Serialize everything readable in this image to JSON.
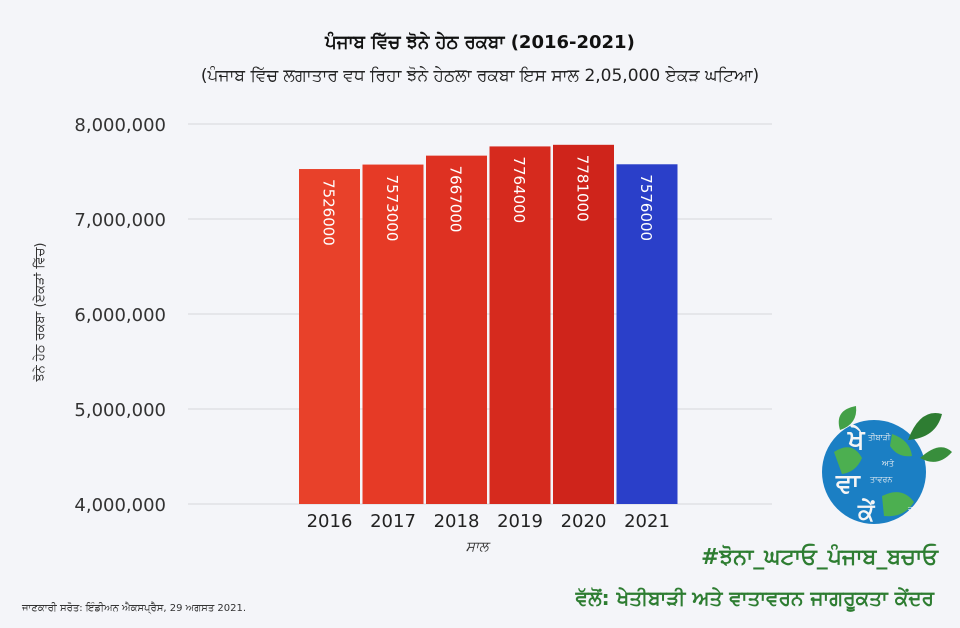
{
  "chart_data": {
    "type": "bar",
    "title": "ਪੰਜਾਬ ਵਿੱਚ ਝੋਨੇ ਹੇਠ ਰਕਬਾ (2016-2021)",
    "subtitle": "(ਪੰਜਾਬ ਵਿੱਚ ਲਗਾਤਾਰ ਵਧ ਰਿਹਾ ਝੋਨੇ ਹੇਠਲਾ ਰਕਬਾ ਇਸ ਸਾਲ 2,05,000 ਏਕੜ ਘਟਿਆ)",
    "xlabel": "ਸਾਲ",
    "ylabel": "ਝੋਨੇ ਹੇਠ ਰਕਬਾ (ਏਕੜਾਂ ਵਿੱਚ)",
    "categories": [
      "2016",
      "2017",
      "2018",
      "2019",
      "2020",
      "2021"
    ],
    "values": [
      7526000,
      7573000,
      7667000,
      7764000,
      7781000,
      7576000
    ],
    "value_labels": [
      "7526000",
      "7573000",
      "7667000",
      "7764000",
      "7781000",
      "7576000"
    ],
    "bar_colors": [
      "#e8412a",
      "#e63a26",
      "#de3122",
      "#d62a1e",
      "#cf241b",
      "#2a3fc9"
    ],
    "ylim": [
      4000000,
      8000000
    ],
    "yticks": [
      4000000,
      5000000,
      6000000,
      7000000,
      8000000
    ],
    "ytick_labels": [
      "4,000,000",
      "5,000,000",
      "6,000,000",
      "7,000,000",
      "8,000,000"
    ],
    "grid": true,
    "legend": "none"
  },
  "footer": {
    "hashtag": "#ਝੋਨਾ_ਘਟਾਓ_ਪੰਜਾਬ_ਬਚਾਓ",
    "credit": "ਵੱਲੋਂ: ਖੇਤੀਬਾੜੀ ਅਤੇ ਵਾਤਾਵਰਨ ਜਾਗਰੂਕਤਾ ਕੇਂਦਰ",
    "source": "ਜਾਣਕਾਰੀ ਸਰੋਤ: ਇੰਡੀਅਨ ਐਕਸਪ੍ਰੈਸ, 29 ਅਗਸਤ 2021."
  },
  "logo": {
    "letters": [
      "ਖੇ",
      "ਵਾ",
      "ਕੇਂ"
    ],
    "words": [
      "ਤੀਬਾੜੀ",
      "ਅਤੇ",
      "ਤਾਵਰਨ",
      "ਦਰ"
    ]
  },
  "colors": {
    "accent_green": "#2e7d32",
    "bar_red": "#e63a26",
    "bar_blue": "#2a3fc9"
  }
}
